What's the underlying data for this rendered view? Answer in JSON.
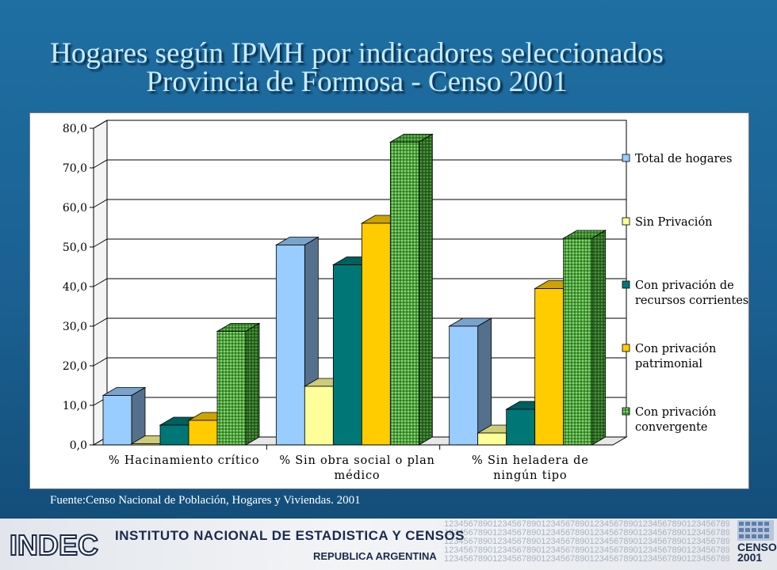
{
  "header": {
    "title_line1": "Hogares según IPMH por indicadores seleccionados",
    "title_line2": "Provincia de Formosa - Censo 2001"
  },
  "source_note": "Fuente:Censo Nacional de Población, Hogares y Viviendas. 2001",
  "footer": {
    "institution": "INSTITUTO NACIONAL DE ESTADISTICA Y CENSOS",
    "country": "REPUBLICA ARGENTINA",
    "logo_text": "INDEC",
    "census_logo_line1": "CENSO",
    "census_logo_line2": "2001",
    "digits_pattern": "1234567890123456789012345678901234567890123456789012345678901234567890"
  },
  "chart_data": {
    "type": "bar",
    "style": "3d-clustered",
    "categories": [
      [
        "% Hacinamiento crítico"
      ],
      [
        "% Sin obra social o plan",
        "médico"
      ],
      [
        "% Sin heladera de",
        "ningún tipo"
      ]
    ],
    "series": [
      {
        "name": "Total de hogares",
        "legend_lines": [
          "Total de hogares"
        ],
        "color": "#99ccff",
        "values": [
          12.5,
          50.5,
          30.0
        ]
      },
      {
        "name": "Sin Privación",
        "legend_lines": [
          "Sin Privación"
        ],
        "color": "#ffff99",
        "values": [
          0.3,
          14.8,
          3.0
        ]
      },
      {
        "name": "Con privación de recursos corrientes",
        "legend_lines": [
          "Con privación de",
          "recursos corrientes"
        ],
        "color": "#007777",
        "values": [
          5.0,
          45.5,
          9.0
        ]
      },
      {
        "name": "Con privación patrimonial",
        "legend_lines": [
          "Con privación",
          "patrimonial"
        ],
        "color": "#ffcc00",
        "values": [
          6.2,
          56.0,
          39.5
        ]
      },
      {
        "name": "Con privación convergente",
        "legend_lines": [
          "Con privación",
          "convergente"
        ],
        "color": "#4aa33b",
        "pattern": "dots",
        "values": [
          28.7,
          76.5,
          52.2
        ]
      }
    ],
    "ylim": [
      0,
      80
    ],
    "yticks": [
      "0,0",
      "10,0",
      "20,0",
      "30,0",
      "40,0",
      "50,0",
      "60,0",
      "70,0",
      "80,0"
    ],
    "grid": true,
    "legend_position": "right"
  }
}
